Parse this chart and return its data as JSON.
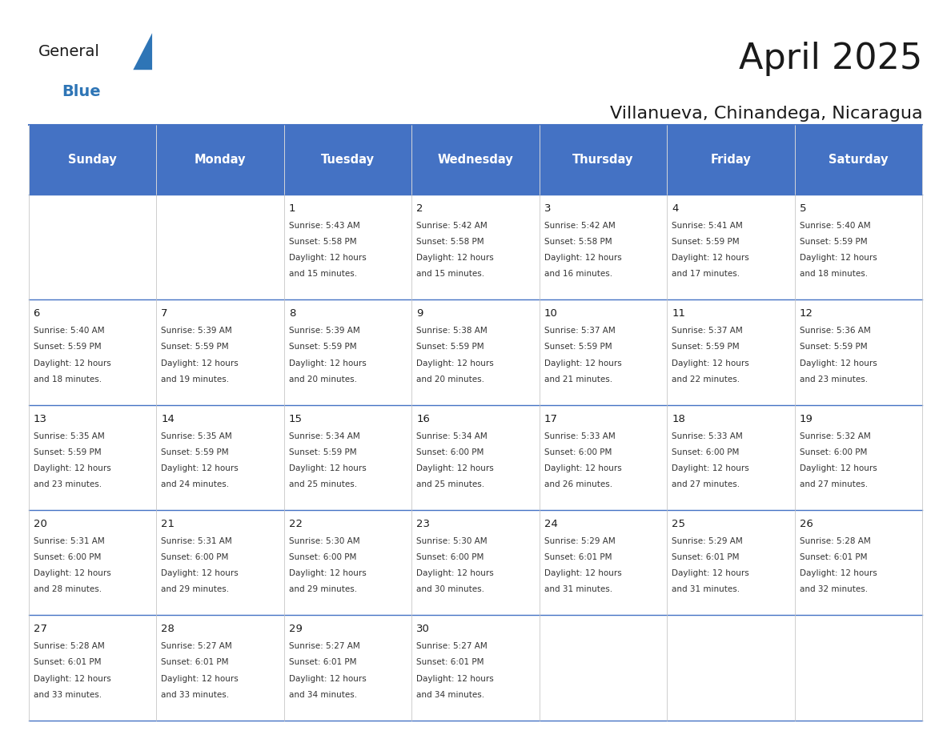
{
  "title": "April 2025",
  "subtitle": "Villanueva, Chinandega, Nicaragua",
  "header_bg": "#4472C4",
  "header_text_color": "#FFFFFF",
  "header_font_size": 11,
  "cell_bg_light": "#F2F2F2",
  "cell_bg_white": "#FFFFFF",
  "days_of_week": [
    "Sunday",
    "Monday",
    "Tuesday",
    "Wednesday",
    "Thursday",
    "Friday",
    "Saturday"
  ],
  "calendar_data": [
    [
      {
        "day": "",
        "sunrise": "",
        "sunset": "",
        "daylight": ""
      },
      {
        "day": "",
        "sunrise": "",
        "sunset": "",
        "daylight": ""
      },
      {
        "day": "1",
        "sunrise": "5:43 AM",
        "sunset": "5:58 PM",
        "daylight": "12 hours and 15 minutes."
      },
      {
        "day": "2",
        "sunrise": "5:42 AM",
        "sunset": "5:58 PM",
        "daylight": "12 hours and 15 minutes."
      },
      {
        "day": "3",
        "sunrise": "5:42 AM",
        "sunset": "5:58 PM",
        "daylight": "12 hours and 16 minutes."
      },
      {
        "day": "4",
        "sunrise": "5:41 AM",
        "sunset": "5:59 PM",
        "daylight": "12 hours and 17 minutes."
      },
      {
        "day": "5",
        "sunrise": "5:40 AM",
        "sunset": "5:59 PM",
        "daylight": "12 hours and 18 minutes."
      }
    ],
    [
      {
        "day": "6",
        "sunrise": "5:40 AM",
        "sunset": "5:59 PM",
        "daylight": "12 hours and 18 minutes."
      },
      {
        "day": "7",
        "sunrise": "5:39 AM",
        "sunset": "5:59 PM",
        "daylight": "12 hours and 19 minutes."
      },
      {
        "day": "8",
        "sunrise": "5:39 AM",
        "sunset": "5:59 PM",
        "daylight": "12 hours and 20 minutes."
      },
      {
        "day": "9",
        "sunrise": "5:38 AM",
        "sunset": "5:59 PM",
        "daylight": "12 hours and 20 minutes."
      },
      {
        "day": "10",
        "sunrise": "5:37 AM",
        "sunset": "5:59 PM",
        "daylight": "12 hours and 21 minutes."
      },
      {
        "day": "11",
        "sunrise": "5:37 AM",
        "sunset": "5:59 PM",
        "daylight": "12 hours and 22 minutes."
      },
      {
        "day": "12",
        "sunrise": "5:36 AM",
        "sunset": "5:59 PM",
        "daylight": "12 hours and 23 minutes."
      }
    ],
    [
      {
        "day": "13",
        "sunrise": "5:35 AM",
        "sunset": "5:59 PM",
        "daylight": "12 hours and 23 minutes."
      },
      {
        "day": "14",
        "sunrise": "5:35 AM",
        "sunset": "5:59 PM",
        "daylight": "12 hours and 24 minutes."
      },
      {
        "day": "15",
        "sunrise": "5:34 AM",
        "sunset": "5:59 PM",
        "daylight": "12 hours and 25 minutes."
      },
      {
        "day": "16",
        "sunrise": "5:34 AM",
        "sunset": "6:00 PM",
        "daylight": "12 hours and 25 minutes."
      },
      {
        "day": "17",
        "sunrise": "5:33 AM",
        "sunset": "6:00 PM",
        "daylight": "12 hours and 26 minutes."
      },
      {
        "day": "18",
        "sunrise": "5:33 AM",
        "sunset": "6:00 PM",
        "daylight": "12 hours and 27 minutes."
      },
      {
        "day": "19",
        "sunrise": "5:32 AM",
        "sunset": "6:00 PM",
        "daylight": "12 hours and 27 minutes."
      }
    ],
    [
      {
        "day": "20",
        "sunrise": "5:31 AM",
        "sunset": "6:00 PM",
        "daylight": "12 hours and 28 minutes."
      },
      {
        "day": "21",
        "sunrise": "5:31 AM",
        "sunset": "6:00 PM",
        "daylight": "12 hours and 29 minutes."
      },
      {
        "day": "22",
        "sunrise": "5:30 AM",
        "sunset": "6:00 PM",
        "daylight": "12 hours and 29 minutes."
      },
      {
        "day": "23",
        "sunrise": "5:30 AM",
        "sunset": "6:00 PM",
        "daylight": "12 hours and 30 minutes."
      },
      {
        "day": "24",
        "sunrise": "5:29 AM",
        "sunset": "6:01 PM",
        "daylight": "12 hours and 31 minutes."
      },
      {
        "day": "25",
        "sunrise": "5:29 AM",
        "sunset": "6:01 PM",
        "daylight": "12 hours and 31 minutes."
      },
      {
        "day": "26",
        "sunrise": "5:28 AM",
        "sunset": "6:01 PM",
        "daylight": "12 hours and 32 minutes."
      }
    ],
    [
      {
        "day": "27",
        "sunrise": "5:28 AM",
        "sunset": "6:01 PM",
        "daylight": "12 hours and 33 minutes."
      },
      {
        "day": "28",
        "sunrise": "5:27 AM",
        "sunset": "6:01 PM",
        "daylight": "12 hours and 33 minutes."
      },
      {
        "day": "29",
        "sunrise": "5:27 AM",
        "sunset": "6:01 PM",
        "daylight": "12 hours and 34 minutes."
      },
      {
        "day": "30",
        "sunrise": "5:27 AM",
        "sunset": "6:01 PM",
        "daylight": "12 hours and 34 minutes."
      },
      {
        "day": "",
        "sunrise": "",
        "sunset": "",
        "daylight": ""
      },
      {
        "day": "",
        "sunrise": "",
        "sunset": "",
        "daylight": ""
      },
      {
        "day": "",
        "sunrise": "",
        "sunset": "",
        "daylight": ""
      }
    ]
  ],
  "logo_text_general": "General",
  "logo_text_blue": "Blue",
  "logo_color_general": "#1A1A1A",
  "logo_color_blue": "#2E75B6",
  "logo_triangle_color": "#2E75B6"
}
